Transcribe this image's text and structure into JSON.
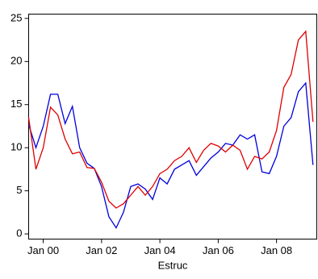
{
  "chart_data": {
    "type": "line",
    "x_label": "Estruc",
    "x": [
      1999.5,
      1999.75,
      2000.0,
      2000.25,
      2000.5,
      2000.75,
      2001.0,
      2001.25,
      2001.5,
      2001.75,
      2002.0,
      2002.25,
      2002.5,
      2002.75,
      2003.0,
      2003.25,
      2003.5,
      2003.75,
      2004.0,
      2004.25,
      2004.5,
      2004.75,
      2005.0,
      2005.25,
      2005.5,
      2005.75,
      2006.0,
      2006.25,
      2006.5,
      2006.75,
      2007.0,
      2007.25,
      2007.5,
      2007.75,
      2008.0,
      2008.25,
      2008.5,
      2008.75,
      2009.0,
      2009.25
    ],
    "series": [
      {
        "color": "#0000dd",
        "values": [
          12.7,
          10,
          12.5,
          16.2,
          16.2,
          12.8,
          14.8,
          10,
          8.2,
          7.6,
          5.5,
          2,
          0.7,
          2.5,
          5.5,
          5.8,
          5.2,
          4,
          6.5,
          5.8,
          7.5,
          8,
          8.5,
          6.8,
          7.8,
          8.8,
          9.5,
          10.5,
          10.3,
          11.5,
          11,
          11.5,
          7.2,
          7,
          9,
          12.5,
          13.5,
          16.5,
          17.5,
          8
        ]
      },
      {
        "color": "#dd0000",
        "values": [
          13.5,
          7.5,
          10,
          14.7,
          13.8,
          11,
          9.3,
          9.5,
          7.7,
          7.6,
          6,
          3.8,
          3,
          3.5,
          4.5,
          5.5,
          4.5,
          5.5,
          7,
          7.5,
          8.5,
          9,
          10,
          8.3,
          9.7,
          10.5,
          10.2,
          9.5,
          10.3,
          9.7,
          7.5,
          9,
          8.7,
          9.5,
          12,
          17,
          18.5,
          22.5,
          23.5,
          13
        ]
      }
    ],
    "xlim": [
      1999.5,
      2009.38
    ],
    "xticks": [
      {
        "value": 2000,
        "label": "Jan 00"
      },
      {
        "value": 2002,
        "label": "Jan 02"
      },
      {
        "value": 2004,
        "label": "Jan 04"
      },
      {
        "value": 2006,
        "label": "Jan 06"
      },
      {
        "value": 2008,
        "label": "Jan 08"
      }
    ],
    "ylim": [
      -0.6,
      25.5
    ],
    "yticks": [
      0,
      5,
      10,
      15,
      20,
      25
    ]
  }
}
